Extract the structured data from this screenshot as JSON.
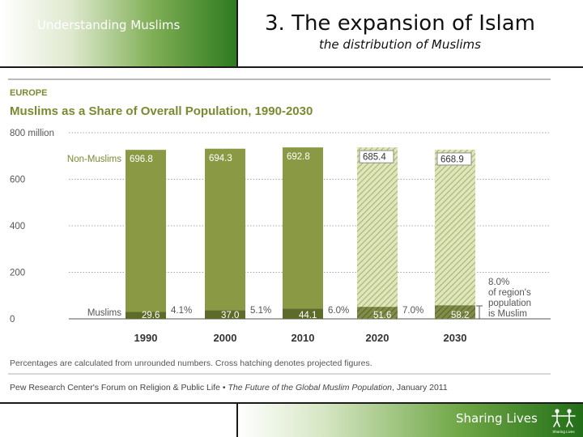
{
  "header": {
    "left_title": "Understanding Muslims",
    "main_title": "3. The expansion of Islam",
    "subtitle": "the distribution of Muslims"
  },
  "footer": {
    "label": "Sharing Lives",
    "logo_text": "Sharing Lives"
  },
  "colors": {
    "bar": "#8a9a44",
    "muslim": "#5d6b2a",
    "projected": "#c5cf93",
    "accent": "#2f7a1f"
  },
  "chart_data": {
    "type": "bar",
    "stacked": true,
    "region": "EUROPE",
    "title": "Muslims as a Share of Overall Population, 1990-2030",
    "categories": [
      "1990",
      "2000",
      "2010",
      "2020",
      "2030"
    ],
    "projected": [
      false,
      false,
      false,
      true,
      true
    ],
    "series": [
      {
        "name": "Muslims",
        "values": [
          29.6,
          37.0,
          44.1,
          51.6,
          58.2
        ],
        "labels": [
          "29.6",
          "37.0",
          "44.1",
          "51.6",
          "58.2"
        ]
      },
      {
        "name": "Non-Muslims",
        "values": [
          696.8,
          694.3,
          692.8,
          685.4,
          668.9
        ],
        "labels": [
          "696.8",
          "694.3",
          "692.8",
          "685.4",
          "668.9"
        ]
      }
    ],
    "share_labels": [
      "4.1%",
      "5.1%",
      "6.0%",
      "7.0%"
    ],
    "final_share_note": [
      "8.0%",
      "of region's",
      "population",
      "is Muslim"
    ],
    "ylim": [
      0,
      800
    ],
    "yticks": [
      0,
      200,
      400,
      600,
      800
    ],
    "ytick_labels": [
      "0",
      "200",
      "400",
      "600",
      "800 million"
    ],
    "grid": true,
    "note": "Percentages are calculated from unrounded numbers. Cross hatching denotes projected figures.",
    "source_org": "Pew Research Center's Forum on Religion & Public Life •",
    "source_title": "The Future of the Global Muslim Population",
    "source_date": ", January 2011"
  }
}
